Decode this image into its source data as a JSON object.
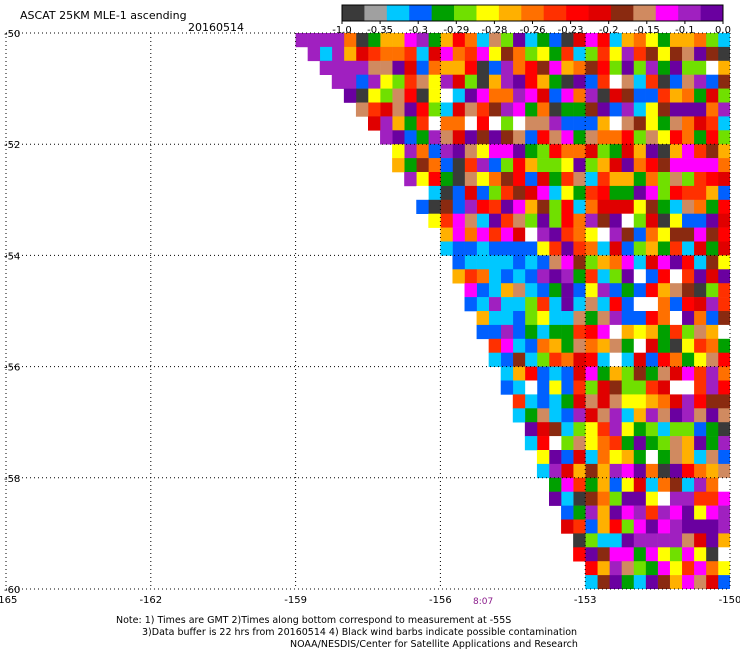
{
  "title": "ASCAT 25KM MLE-1 ascending",
  "date": "20160514",
  "notes": [
    "Note: 1) Times are GMT 2)Times along bottom correspond to measurement at -55S",
    "3)Data buffer is 22 hrs from 20160514 4) Black wind barbs indicate possible contamination",
    "NOAA/NESDIS/Center for Satellite Applications and Research"
  ],
  "time_label": "8:07",
  "colorbar": {
    "labels": [
      "-1.0",
      "-0.35",
      "-0.3",
      "-0.29",
      "-0.28",
      "-0.26",
      "-0.23",
      "-0.2",
      "-0.15",
      "-0.1",
      "0.0"
    ],
    "colors": [
      "#3a3a3a",
      "#a0a0a0",
      "#00c8ff",
      "#0060ff",
      "#00a000",
      "#70e000",
      "#ffff00",
      "#ffb000",
      "#ff7000",
      "#ff3000",
      "#ff0000",
      "#e00000",
      "#8a2a10",
      "#d08a60",
      "#ff00ff",
      "#a020c0",
      "#6a00a0"
    ]
  },
  "chart_data": {
    "type": "heatmap",
    "title": "ASCAT 25KM MLE-1 ascending",
    "xlim": [
      -165,
      -150
    ],
    "ylim": [
      -60,
      -50
    ],
    "x_ticks": [
      -165,
      -162,
      -159,
      -156,
      -153,
      -150
    ],
    "x_tick_labels": [
      "-165",
      "-162",
      "-159",
      "-156",
      "-153",
      "-150"
    ],
    "y_ticks": [
      -50,
      -52,
      -54,
      -56,
      -58,
      -60
    ],
    "y_tick_labels": [
      "-50",
      "-52",
      "-54",
      "-56",
      "-58",
      "-60"
    ],
    "grid": true,
    "swath_edge": [
      [
        -159.2,
        -50
      ],
      [
        -157.2,
        -52
      ],
      [
        -155.9,
        -54
      ],
      [
        -154.9,
        -56
      ],
      [
        -153.9,
        -58
      ],
      [
        -153.0,
        -60
      ]
    ],
    "cell_size_deg": 0.25,
    "value_colors": [
      "#3a3a3a",
      "#a0a0a0",
      "#00c8ff",
      "#0060ff",
      "#00a000",
      "#70e000",
      "#ffff00",
      "#ffb000",
      "#ff7000",
      "#ff3000",
      "#ff0000",
      "#e00000",
      "#8a2a10",
      "#d08a60",
      "#ff00ff",
      "#a020c0",
      "#6a00a0",
      "#ffffff"
    ]
  }
}
